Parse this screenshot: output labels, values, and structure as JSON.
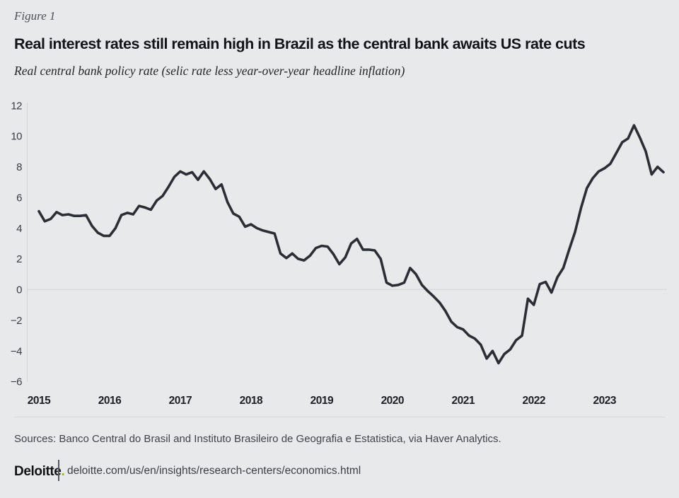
{
  "header": {
    "figure_label": "Figure 1",
    "title": "Real interest rates still remain high in Brazil as the central bank awaits US rate cuts",
    "subtitle": "Real central bank policy rate (selic rate less year-over-year headline inflation)"
  },
  "chart_data": {
    "type": "line",
    "title": "Real interest rates still remain high in Brazil as the central bank awaits US rate cuts",
    "subtitle": "Real central bank policy rate (selic rate less year-over-year headline inflation)",
    "x_start": "2015-01",
    "x_end": "2023-11",
    "frequency": "monthly",
    "x_tick_labels": [
      "2015",
      "2016",
      "2017",
      "2018",
      "2019",
      "2020",
      "2021",
      "2022",
      "2023"
    ],
    "y_ticks": [
      12,
      10,
      8,
      6,
      4,
      2,
      0,
      -2,
      -4,
      -6
    ],
    "ylim": [
      -6,
      12
    ],
    "grid": "horizontal-zero-line-only",
    "legend_position": "none",
    "series": [
      {
        "name": "Real central bank policy rate (%)",
        "values": [
          5.1,
          4.45,
          4.6,
          5.05,
          4.85,
          4.9,
          4.8,
          4.8,
          4.85,
          4.15,
          3.7,
          3.5,
          3.5,
          4.0,
          4.85,
          5.0,
          4.9,
          5.45,
          5.35,
          5.2,
          5.8,
          6.1,
          6.7,
          7.35,
          7.7,
          7.5,
          7.65,
          7.15,
          7.7,
          7.2,
          6.55,
          6.85,
          5.7,
          4.95,
          4.75,
          4.1,
          4.25,
          4.0,
          3.85,
          3.75,
          3.65,
          2.35,
          2.05,
          2.35,
          2.0,
          1.9,
          2.2,
          2.7,
          2.85,
          2.8,
          2.3,
          1.65,
          2.1,
          3.0,
          3.3,
          2.6,
          2.6,
          2.55,
          2.0,
          0.45,
          0.25,
          0.3,
          0.45,
          1.4,
          1.0,
          0.3,
          -0.1,
          -0.45,
          -0.85,
          -1.4,
          -2.1,
          -2.45,
          -2.6,
          -3.0,
          -3.2,
          -3.6,
          -4.5,
          -4.0,
          -4.8,
          -4.2,
          -3.9,
          -3.3,
          -3.0,
          -0.6,
          -1.0,
          0.35,
          0.5,
          -0.2,
          0.8,
          1.4,
          2.6,
          3.75,
          5.3,
          6.6,
          7.25,
          7.7,
          7.9,
          8.2,
          8.9,
          9.6,
          9.85,
          10.7,
          9.9,
          9.0,
          7.5,
          8.0,
          7.65
        ]
      }
    ],
    "line_color": "#2b2e35"
  },
  "footer": {
    "sources": "Sources: Banco Central do Brasil and Instituto Brasileiro de Geografia e Estatistica, via Haver Analytics.",
    "brand": "Deloitte",
    "brand_dot": ".",
    "url": "deloitte.com/us/en/insights/research-centers/economics.html"
  },
  "colors": {
    "background": "#e8e9ea",
    "line": "#2b2e35",
    "axis": "#d3d4d6",
    "zero_gridline": "#d6d7d9",
    "accent_green": "#86bc25"
  }
}
